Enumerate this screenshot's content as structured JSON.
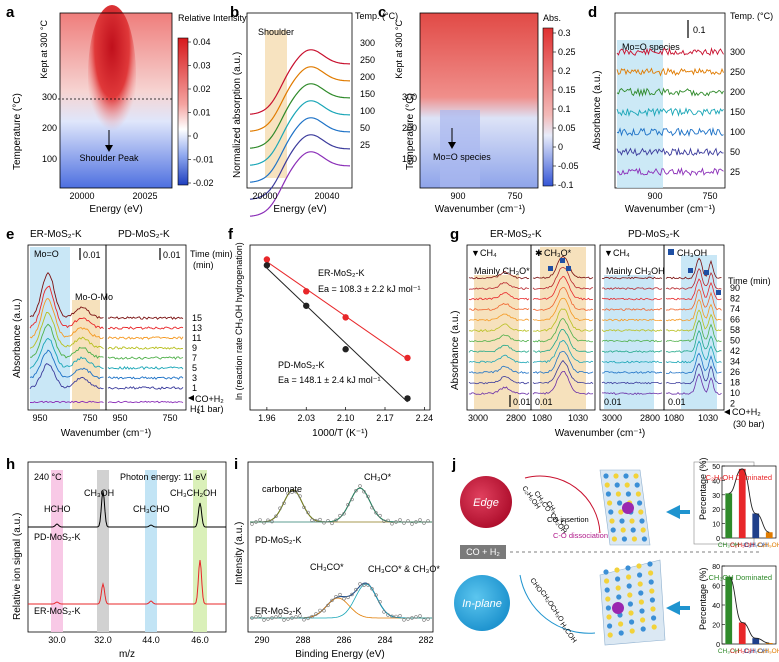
{
  "panel_labels": {
    "a": "a",
    "b": "b",
    "c": "c",
    "d": "d",
    "e": "e",
    "f": "f",
    "g": "g",
    "h": "h",
    "i": "i",
    "j": "j"
  },
  "colors": {
    "t300": "#c8102e",
    "t250": "#e07b00",
    "t200": "#2f8a2a",
    "t150": "#1aa6b7",
    "t100": "#1f73c7",
    "t50": "#3b3b9c",
    "t25": "#8b2fb8",
    "accent": "#e8272a"
  },
  "a": {
    "ylabel": "Temperature (°C)",
    "xlabel": "Energy (eV)",
    "kept": "Kept at 300 °C",
    "xticks": [
      "20000",
      "20025"
    ],
    "yticks": [
      "100",
      "200",
      "300"
    ],
    "annotation": "Shoulder Peak",
    "cbar_title": "Relative Intensity",
    "cbar_ticks": [
      "0.04",
      "0.03",
      "0.02",
      "0.01",
      "0",
      "-0.01",
      "-0.02"
    ]
  },
  "b": {
    "ylabel": "Normalized absorption (a.u.)",
    "xlabel": "Energy (eV)",
    "xticks": [
      "20000",
      "20040"
    ],
    "annotation": "Shoulder",
    "legend_title": "Temp. (°C)",
    "temps": [
      "300",
      "250",
      "200",
      "150",
      "100",
      "50",
      "25"
    ]
  },
  "c": {
    "ylabel": "Temperature (°C)",
    "xlabel": "Wavenumber (cm⁻¹)",
    "kept": "Kept at 300 °C",
    "xticks": [
      "900",
      "750"
    ],
    "yticks": [
      "100",
      "200",
      "300"
    ],
    "annotation": "Mo=O species",
    "cbar_title": "Abs.",
    "cbar_ticks": [
      "0.3",
      "0.25",
      "0.2",
      "0.15",
      "0.1",
      "0.05",
      "0",
      "-0.05",
      "-0.1"
    ]
  },
  "d": {
    "ylabel": "Absorbance (a.u.)",
    "xlabel": "Wavenumber (cm⁻¹)",
    "xticks": [
      "900",
      "750"
    ],
    "annotation": "Mo=O species",
    "scale": "0.1",
    "legend_title": "Temp. (°C)",
    "temps": [
      "300",
      "250",
      "200",
      "150",
      "100",
      "50",
      "25"
    ]
  },
  "e": {
    "ylabel": "Absorbance (a.u.)",
    "xlabel": "Wavenumber (cm⁻¹)",
    "title_left": "ER-MoS₂-K",
    "title_right": "PD-MoS₂-K",
    "mo_o": "Mo=O",
    "mo_o_mo": "Mo-O-Mo",
    "scale_left": "0.01",
    "scale_right": "0.01",
    "xticks_left": [
      "950",
      "750"
    ],
    "xticks_right": [
      "950",
      "750"
    ],
    "legend_title": "Time (min)",
    "times": [
      "15",
      "13",
      "11",
      "9",
      "7",
      "5",
      "3",
      "1"
    ],
    "h2": "H₂",
    "co": "CO+H₂",
    "pressure": "(1 bar)"
  },
  "f": {
    "ylabel": "ln (reaction rate CH₃OH hydrogenation)",
    "xlabel": "1000/T (K⁻¹)",
    "xticks": [
      "1.96",
      "2.03",
      "2.10",
      "2.17",
      "2.24"
    ],
    "er_label": "ER-MoS₂-K",
    "er_ea": "Ea = 108.3 ± 2.2 kJ mol⁻¹",
    "pd_label": "PD-MoS₂-K",
    "pd_ea": "Ea = 148.1 ± 2.4 kJ mol⁻¹"
  },
  "g": {
    "ylabel": "Absorbance (a.u.)",
    "xlabel": "Wavenumber (cm⁻¹)",
    "title_left": "ER-MoS₂-K",
    "title_right": "PD-MoS₂-K",
    "ch4": "CH₄",
    "ch3o": "CH₃O*",
    "ch3oh": "CH₃OH",
    "mainly_left": "Mainly CH₃O*",
    "mainly_right": "Mainly CH₃OH",
    "xticks_a": [
      "3000",
      "2800"
    ],
    "xticks_b": [
      "1080",
      "1030"
    ],
    "scale": "0.01",
    "legend_title": "Time (min)",
    "times": [
      "90",
      "82",
      "74",
      "66",
      "58",
      "50",
      "42",
      "34",
      "26",
      "18",
      "10",
      "2"
    ],
    "co": "CO+H₂",
    "pressure": "(30 bar)"
  },
  "h": {
    "ylabel": "Relative ion signal (a.u.)",
    "xlabel": "m/z",
    "temp": "240 °C",
    "photon": "Photon energy: 11 eV",
    "xticks": [
      "30.0",
      "32.0",
      "44.0",
      "46.0"
    ],
    "hcho": "HCHO",
    "ch3oh": "CH₃OH",
    "ch3cho": "CH₃CHO",
    "ch3ch2oh": "CH₃CH₂OH",
    "pd_label": "PD-MoS₂-K",
    "er_label": "ER-MoS₂-K"
  },
  "i": {
    "ylabel": "Intensity (a.u.)",
    "xlabel": "Binding Energy (eV)",
    "xticks": [
      "290",
      "288",
      "286",
      "284",
      "282"
    ],
    "carbonate": "carbonate",
    "ch3o": "CH₃O*",
    "ch3co": "CH₃CO*",
    "ch3co2": "CH₃CO* & CH₃O*",
    "pd_label": "PD-MoS₂-K",
    "er_label": "ER-MoS₂-K"
  },
  "j": {
    "edge": "Edge",
    "inplane": "In-plane",
    "coh2": "CO + H₂",
    "co_insertion": "CO insertion",
    "co_diss": "C-O dissociation",
    "edge_path": [
      "C₂H₅OH",
      "CH₃CO",
      "CH₃",
      "CH₂OH",
      "CO"
    ],
    "inplane_path": [
      "CHO",
      "CH₂O",
      "CH₃O",
      "H₃COH"
    ],
    "ylabel": "Percentage (%)",
    "top_note": "C₂H₅OH Dominated",
    "bottom_note": "CH₃OH Dominated",
    "categories": [
      "CH₃OH",
      "C₂H₅OH",
      "C₃H₇OH",
      "C₄H₉OH"
    ]
  },
  "chart_data": [
    {
      "panel": "f",
      "type": "scatter",
      "title": "",
      "xlabel": "1000/T (K⁻¹)",
      "ylabel": "ln (reaction rate CH₃OH hydrogenation)",
      "xlim": [
        1.93,
        2.25
      ],
      "ylim": [
        -4.5,
        1.2
      ],
      "series": [
        {
          "name": "ER-MoS₂-K",
          "x": [
            1.96,
            2.03,
            2.1,
            2.21
          ],
          "y": [
            0.7,
            -0.4,
            -1.3,
            -2.7
          ]
        },
        {
          "name": "PD-MoS₂-K",
          "x": [
            1.96,
            2.03,
            2.1,
            2.21
          ],
          "y": [
            0.5,
            -0.9,
            -2.4,
            -4.1
          ]
        }
      ]
    },
    {
      "panel": "j-top",
      "type": "bar",
      "title": "C₂H₅OH Dominated",
      "ylabel": "Percentage (%)",
      "ylim": [
        0,
        50
      ],
      "categories": [
        "CH₃OH",
        "C₂H₅OH",
        "C₃H₇OH",
        "C₄H₉OH"
      ],
      "values": [
        31,
        48,
        17,
        4
      ]
    },
    {
      "panel": "j-bottom",
      "type": "bar",
      "title": "CH₃OH Dominated",
      "ylabel": "Percentage (%)",
      "ylim": [
        0,
        80
      ],
      "categories": [
        "CH₃OH",
        "C₂H₅OH",
        "C₃H₇OH",
        "C₄H₉OH"
      ],
      "values": [
        69,
        22,
        6,
        1
      ]
    }
  ]
}
